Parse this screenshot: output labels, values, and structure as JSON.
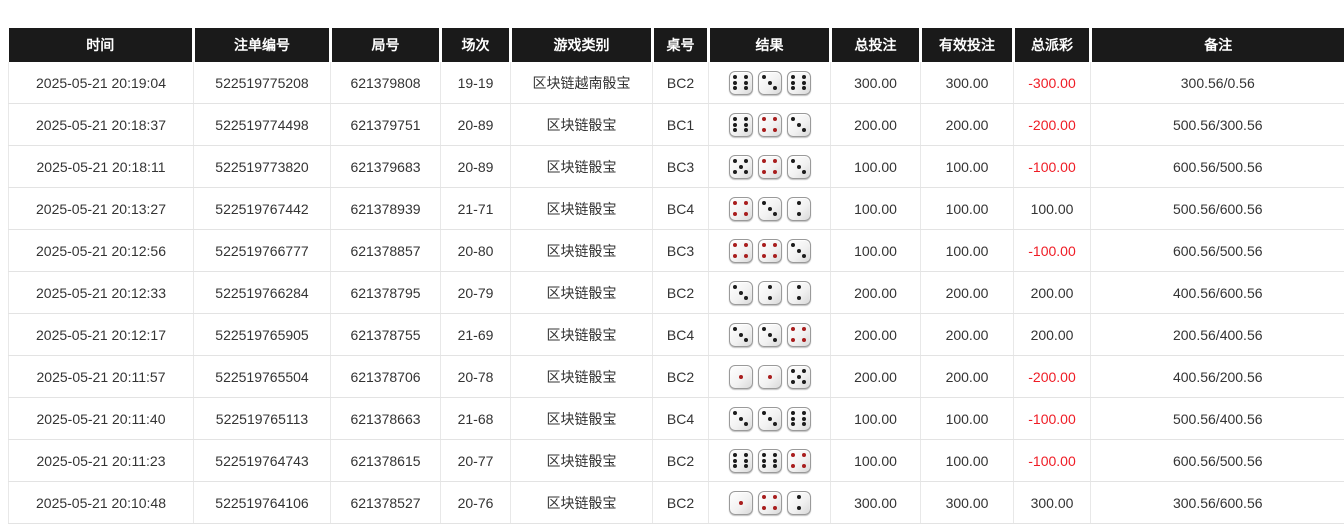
{
  "colors": {
    "header_bg": "#1a1a1a",
    "header_text": "#ffffff",
    "body_text": "#333333",
    "total_bet_blue": "#2170d8",
    "negative_red": "#ef1c25",
    "row_border": "#e3e3e3",
    "pip_black": "#1c1c1c",
    "pip_red": "#a81d1d"
  },
  "table": {
    "columns": [
      {
        "key": "time",
        "label": "时间"
      },
      {
        "key": "bet_id",
        "label": "注单编号"
      },
      {
        "key": "round_id",
        "label": "局号"
      },
      {
        "key": "session",
        "label": "场次"
      },
      {
        "key": "game_type",
        "label": "游戏类别"
      },
      {
        "key": "table_no",
        "label": "桌号"
      },
      {
        "key": "result",
        "label": "结果"
      },
      {
        "key": "total_bet",
        "label": "总投注"
      },
      {
        "key": "valid_bet",
        "label": "有效投注"
      },
      {
        "key": "payout",
        "label": "总派彩"
      },
      {
        "key": "remark",
        "label": "备注"
      }
    ],
    "dice_red_faces": [
      1,
      4
    ],
    "rows": [
      {
        "time": "2025-05-21 20:19:04",
        "bet_id": "522519775208",
        "round_id": "621379808",
        "session": "19-19",
        "game_type": "区块链越南骰宝",
        "table_no": "BC2",
        "result_dice": [
          6,
          3,
          6
        ],
        "total_bet": "300.00",
        "valid_bet": "300.00",
        "payout": "-300.00",
        "remark": "300.56/0.56"
      },
      {
        "time": "2025-05-21 20:18:37",
        "bet_id": "522519774498",
        "round_id": "621379751",
        "session": "20-89",
        "game_type": "区块链骰宝",
        "table_no": "BC1",
        "result_dice": [
          6,
          4,
          3
        ],
        "total_bet": "200.00",
        "valid_bet": "200.00",
        "payout": "-200.00",
        "remark": "500.56/300.56"
      },
      {
        "time": "2025-05-21 20:18:11",
        "bet_id": "522519773820",
        "round_id": "621379683",
        "session": "20-89",
        "game_type": "区块链骰宝",
        "table_no": "BC3",
        "result_dice": [
          5,
          4,
          3
        ],
        "total_bet": "100.00",
        "valid_bet": "100.00",
        "payout": "-100.00",
        "remark": "600.56/500.56"
      },
      {
        "time": "2025-05-21 20:13:27",
        "bet_id": "522519767442",
        "round_id": "621378939",
        "session": "21-71",
        "game_type": "区块链骰宝",
        "table_no": "BC4",
        "result_dice": [
          4,
          3,
          2
        ],
        "total_bet": "100.00",
        "valid_bet": "100.00",
        "payout": "100.00",
        "remark": "500.56/600.56"
      },
      {
        "time": "2025-05-21 20:12:56",
        "bet_id": "522519766777",
        "round_id": "621378857",
        "session": "20-80",
        "game_type": "区块链骰宝",
        "table_no": "BC3",
        "result_dice": [
          4,
          4,
          3
        ],
        "total_bet": "100.00",
        "valid_bet": "100.00",
        "payout": "-100.00",
        "remark": "600.56/500.56"
      },
      {
        "time": "2025-05-21 20:12:33",
        "bet_id": "522519766284",
        "round_id": "621378795",
        "session": "20-79",
        "game_type": "区块链骰宝",
        "table_no": "BC2",
        "result_dice": [
          3,
          2,
          2
        ],
        "total_bet": "200.00",
        "valid_bet": "200.00",
        "payout": "200.00",
        "remark": "400.56/600.56"
      },
      {
        "time": "2025-05-21 20:12:17",
        "bet_id": "522519765905",
        "round_id": "621378755",
        "session": "21-69",
        "game_type": "区块链骰宝",
        "table_no": "BC4",
        "result_dice": [
          3,
          3,
          4
        ],
        "total_bet": "200.00",
        "valid_bet": "200.00",
        "payout": "200.00",
        "remark": "200.56/400.56"
      },
      {
        "time": "2025-05-21 20:11:57",
        "bet_id": "522519765504",
        "round_id": "621378706",
        "session": "20-78",
        "game_type": "区块链骰宝",
        "table_no": "BC2",
        "result_dice": [
          1,
          1,
          5
        ],
        "total_bet": "200.00",
        "valid_bet": "200.00",
        "payout": "-200.00",
        "remark": "400.56/200.56"
      },
      {
        "time": "2025-05-21 20:11:40",
        "bet_id": "522519765113",
        "round_id": "621378663",
        "session": "21-68",
        "game_type": "区块链骰宝",
        "table_no": "BC4",
        "result_dice": [
          3,
          3,
          6
        ],
        "total_bet": "100.00",
        "valid_bet": "100.00",
        "payout": "-100.00",
        "remark": "500.56/400.56"
      },
      {
        "time": "2025-05-21 20:11:23",
        "bet_id": "522519764743",
        "round_id": "621378615",
        "session": "20-77",
        "game_type": "区块链骰宝",
        "table_no": "BC2",
        "result_dice": [
          6,
          6,
          4
        ],
        "total_bet": "100.00",
        "valid_bet": "100.00",
        "payout": "-100.00",
        "remark": "600.56/500.56"
      },
      {
        "time": "2025-05-21 20:10:48",
        "bet_id": "522519764106",
        "round_id": "621378527",
        "session": "20-76",
        "game_type": "区块链骰宝",
        "table_no": "BC2",
        "result_dice": [
          1,
          4,
          2
        ],
        "total_bet": "300.00",
        "valid_bet": "300.00",
        "payout": "300.00",
        "remark": "300.56/600.56"
      }
    ]
  }
}
